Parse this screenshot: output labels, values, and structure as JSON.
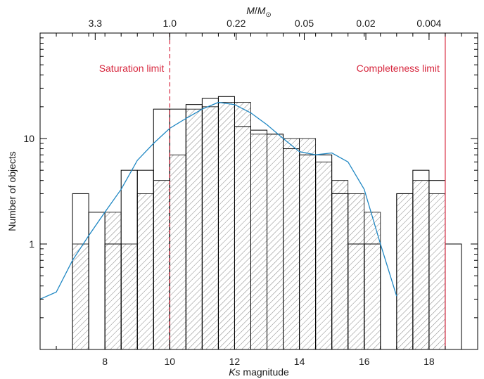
{
  "chart_data": {
    "type": "bar",
    "xlabel": "Ks magnitude",
    "ylabel": "Number of objects",
    "top_axis_label": "M/M⊙",
    "xlim": [
      6,
      19.5
    ],
    "ylim": [
      0.1,
      100
    ],
    "y_scale": "log",
    "x_ticks": [
      8,
      10,
      12,
      14,
      16,
      18
    ],
    "y_ticks": [
      {
        "value": 1,
        "label": "1"
      },
      {
        "value": 10,
        "label": "10"
      }
    ],
    "top_ticks": [
      {
        "ks": 7.7,
        "label": "3.3"
      },
      {
        "ks": 10.0,
        "label": "1.0"
      },
      {
        "ks": 12.05,
        "label": "0.22"
      },
      {
        "ks": 14.15,
        "label": "0.05"
      },
      {
        "ks": 16.05,
        "label": "0.02"
      },
      {
        "ks": 18.0,
        "label": "0.004"
      }
    ],
    "bin_width": 0.5,
    "series": [
      {
        "name": "",
        "style": "hatched histogram",
        "bin_starts": [
          7.0,
          7.5,
          8.0,
          8.5,
          9.0,
          9.5,
          10.0,
          10.5,
          11.0,
          11.5,
          12.0,
          12.5,
          13.0,
          13.5,
          14.0,
          14.5,
          15.0,
          15.5,
          16.0,
          17.0,
          17.5,
          18.0
        ],
        "values": [
          1,
          0.1,
          2,
          1,
          3,
          4,
          7,
          19,
          20,
          22,
          22,
          11,
          11,
          10,
          10,
          6,
          4,
          3,
          2,
          3,
          4,
          3
        ]
      },
      {
        "name": "",
        "style": "open histogram",
        "bin_starts": [
          7.0,
          7.5,
          8.0,
          8.5,
          9.0,
          9.5,
          10.0,
          10.5,
          11.0,
          11.5,
          12.0,
          12.5,
          13.0,
          13.5,
          14.0,
          14.5,
          15.0,
          15.5,
          16.0,
          17.0,
          17.5,
          18.0,
          18.5
        ],
        "values": [
          3,
          2,
          1,
          5,
          5,
          19,
          19,
          21,
          24,
          25,
          13,
          12,
          11,
          8,
          7,
          7,
          3,
          1,
          1,
          3,
          5,
          4,
          1
        ]
      },
      {
        "name": "",
        "style": "line",
        "color": "#1f87c3",
        "x": [
          6.0,
          6.5,
          7.0,
          7.5,
          8.0,
          8.5,
          9.0,
          9.5,
          10.0,
          10.5,
          11.0,
          11.5,
          12.0,
          12.5,
          13.0,
          13.5,
          14.0,
          14.5,
          15.0,
          15.5,
          16.0,
          16.5,
          17.0
        ],
        "y": [
          0.3,
          0.35,
          0.7,
          1.2,
          2.0,
          3.3,
          6.2,
          9.0,
          12.5,
          15.5,
          19.0,
          22.0,
          21.0,
          17.5,
          13.5,
          10.0,
          7.5,
          7.0,
          7.3,
          6.0,
          3.3,
          1.0,
          0.32
        ]
      }
    ],
    "annotations": [
      {
        "label": "Saturation limit",
        "x": 10.0,
        "line": "dashed",
        "text_side": "left"
      },
      {
        "label": "Completeness limit",
        "x": 18.5,
        "line": "solid",
        "text_side": "left"
      }
    ],
    "colors": {
      "axis": "#000000",
      "hatch": "#777777",
      "limit": "#d7263d",
      "model": "#1f87c3"
    }
  }
}
